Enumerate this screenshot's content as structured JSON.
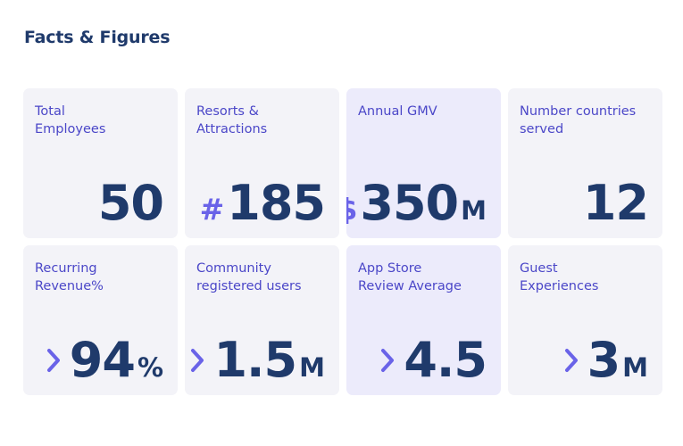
{
  "page": {
    "title": "Facts & Figures"
  },
  "colors": {
    "navy": "#1f3a6b",
    "accent": "#6a63e8",
    "label": "#4b47c8",
    "card_light": "#f3f3f8",
    "card_lilac": "#ecebfb"
  },
  "stats": [
    {
      "label": "Total\nEmployees",
      "prefix": "",
      "value": "50",
      "suffix": ""
    },
    {
      "label": "Resorts &\nAttractions",
      "prefix": "#",
      "value": "185",
      "suffix": ""
    },
    {
      "label": "Annual GMV",
      "prefix": "$",
      "value": "350",
      "suffix": "M"
    },
    {
      "label": "Number countries\nserved",
      "prefix": "",
      "value": "12",
      "suffix": ""
    },
    {
      "label": "Recurring\nRevenue%",
      "prefix": "",
      "value": "94",
      "suffix": "%",
      "icon": "chevron-right-icon"
    },
    {
      "label": "Community\nregistered users",
      "prefix": "",
      "value": "1.5",
      "suffix": "M",
      "icon": "chevron-right-icon"
    },
    {
      "label": "App Store\nReview Average",
      "prefix": "",
      "value": "4.5",
      "suffix": "",
      "icon": "chevron-right-icon"
    },
    {
      "label": "Guest\nExperiences",
      "prefix": "",
      "value": "3",
      "suffix": "M",
      "icon": "chevron-right-icon"
    }
  ]
}
